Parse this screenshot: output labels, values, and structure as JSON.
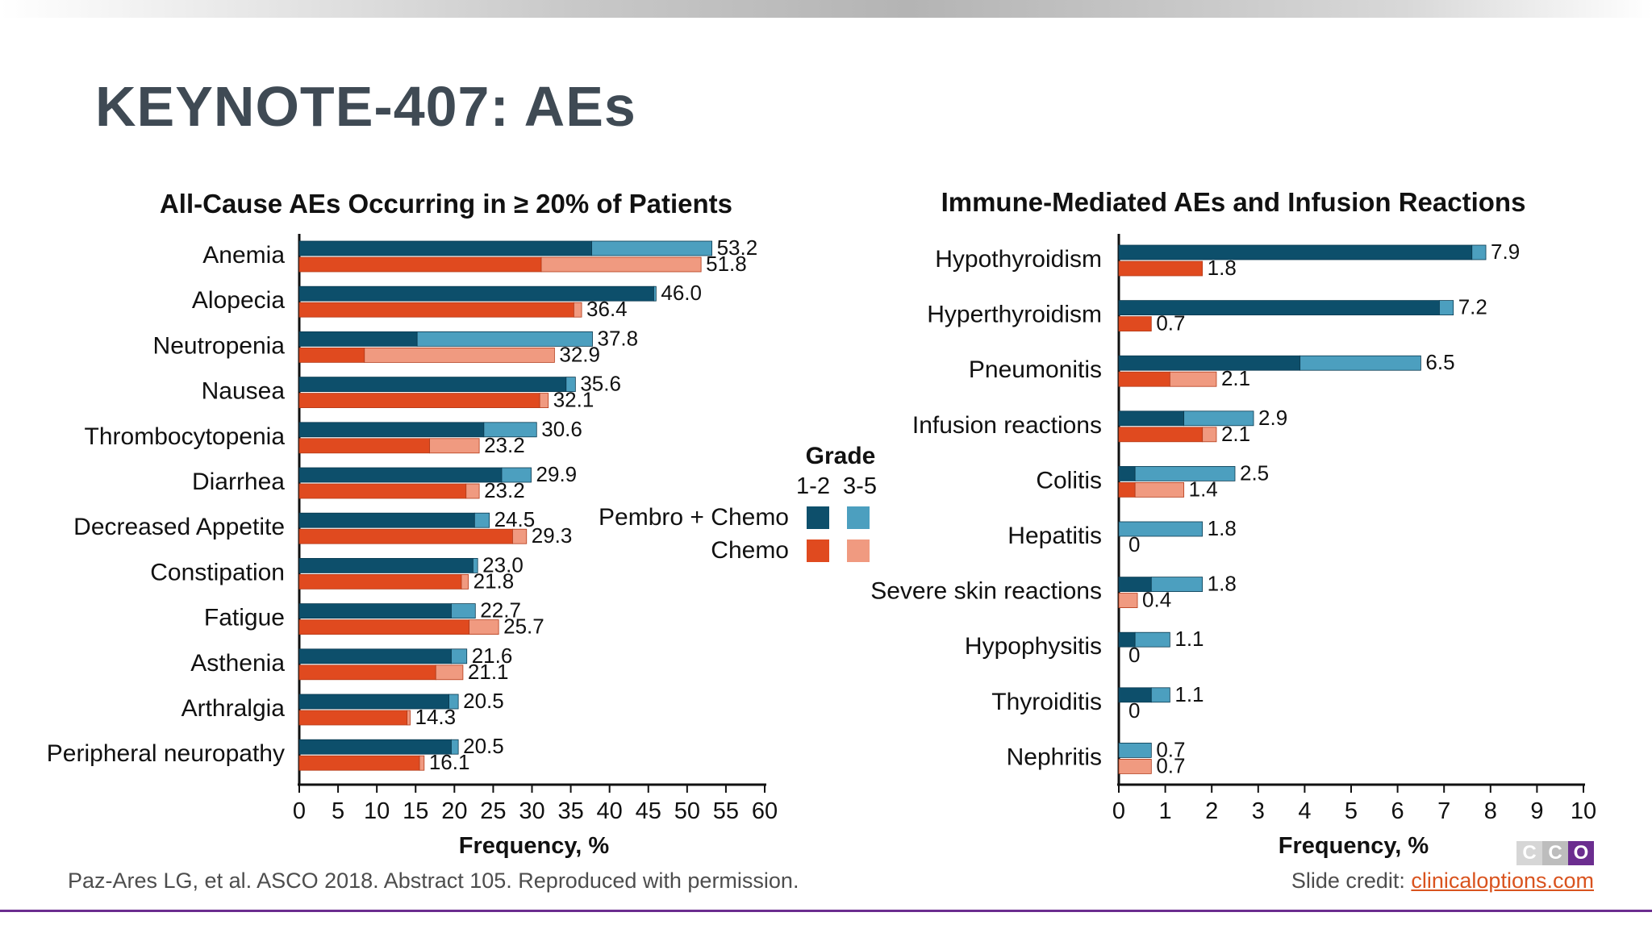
{
  "slide": {
    "title": "KEYNOTE-407: AEs",
    "footnote": "Paz-Ares LG, et al. ASCO 2018. Abstract 105. Reproduced with permission.",
    "credit_prefix": "Slide credit: ",
    "credit_link": "clinicaloptions.com"
  },
  "colors": {
    "pembro_12": "#0d4f6b",
    "pembro_35": "#4c9fbf",
    "chemo_12": "#e04a1f",
    "chemo_35": "#f09a80"
  },
  "legend": {
    "title": "Grade",
    "col_labels": [
      "1-2",
      "3-5"
    ],
    "rows": [
      "Pembro + Chemo",
      "Chemo"
    ]
  },
  "chart_data": [
    {
      "type": "bar",
      "orientation": "horizontal",
      "stacked": true,
      "title": "All-Cause AEs Occurring in ≥ 20% of Patients",
      "xlabel": "Frequency, %",
      "xlim": [
        0,
        60
      ],
      "xticks": [
        0,
        5,
        10,
        15,
        20,
        25,
        30,
        35,
        40,
        45,
        50,
        55,
        60
      ],
      "categories": [
        "Anemia",
        "Alopecia",
        "Neutropenia",
        "Nausea",
        "Thrombocytopenia",
        "Diarrhea",
        "Decreased Appetite",
        "Constipation",
        "Fatigue",
        "Asthenia",
        "Arthralgia",
        "Peripheral neuropathy"
      ],
      "series": [
        {
          "name": "Pembro + Chemo",
          "grade12": [
            37.7,
            45.7,
            15.2,
            34.4,
            23.8,
            26.1,
            22.6,
            22.4,
            19.6,
            19.6,
            19.3,
            19.6
          ],
          "grade35": [
            15.5,
            0.3,
            22.6,
            1.2,
            6.8,
            3.8,
            1.9,
            0.6,
            3.1,
            2.0,
            1.2,
            0.9
          ],
          "totals": [
            "53.2",
            "46.0",
            "37.8",
            "35.6",
            "30.6",
            "29.9",
            "24.5",
            "23.0",
            "22.7",
            "21.6",
            "20.5",
            "20.5"
          ]
        },
        {
          "name": "Chemo",
          "grade12": [
            31.2,
            35.4,
            8.4,
            31.0,
            16.8,
            21.5,
            27.5,
            20.9,
            21.9,
            17.6,
            13.9,
            15.5
          ],
          "grade35": [
            20.6,
            1.0,
            24.5,
            1.1,
            6.4,
            1.7,
            1.8,
            0.9,
            3.8,
            3.5,
            0.4,
            0.6
          ],
          "totals": [
            "51.8",
            "36.4",
            "32.9",
            "32.1",
            "23.2",
            "23.2",
            "29.3",
            "21.8",
            "25.7",
            "21.1",
            "14.3",
            "16.1"
          ]
        }
      ]
    },
    {
      "type": "bar",
      "orientation": "horizontal",
      "stacked": true,
      "title": "Immune-Mediated AEs and Infusion Reactions",
      "xlabel": "Frequency, %",
      "xlim": [
        0,
        10
      ],
      "xticks": [
        0,
        1,
        2,
        3,
        4,
        5,
        6,
        7,
        8,
        9,
        10
      ],
      "categories": [
        "Hypothyroidism",
        "Hyperthyroidism",
        "Pneumonitis",
        "Infusion reactions",
        "Colitis",
        "Hepatitis",
        "Severe skin reactions",
        "Hypophysitis",
        "Thyroiditis",
        "Nephritis"
      ],
      "series": [
        {
          "name": "Pembro + Chemo",
          "grade12": [
            7.6,
            6.9,
            3.9,
            1.4,
            0.35,
            0.0,
            0.7,
            0.35,
            0.7,
            0.0
          ],
          "grade35": [
            0.3,
            0.3,
            2.6,
            1.5,
            2.15,
            1.8,
            1.1,
            0.75,
            0.4,
            0.7
          ],
          "totals": [
            "7.9",
            "7.2",
            "6.5",
            "2.9",
            "2.5",
            "1.8",
            "1.8",
            "1.1",
            "1.1",
            "0.7"
          ]
        },
        {
          "name": "Chemo",
          "grade12": [
            1.8,
            0.7,
            1.1,
            1.8,
            0.35,
            0.0,
            0.0,
            0.0,
            0.0,
            0.0
          ],
          "grade35": [
            0.0,
            0.0,
            1.0,
            0.3,
            1.05,
            0.0,
            0.4,
            0.0,
            0.0,
            0.7
          ],
          "totals": [
            "1.8",
            "0.7",
            "2.1",
            "2.1",
            "1.4",
            "0",
            "0.4",
            "0",
            "0",
            "0.7"
          ]
        }
      ]
    }
  ]
}
